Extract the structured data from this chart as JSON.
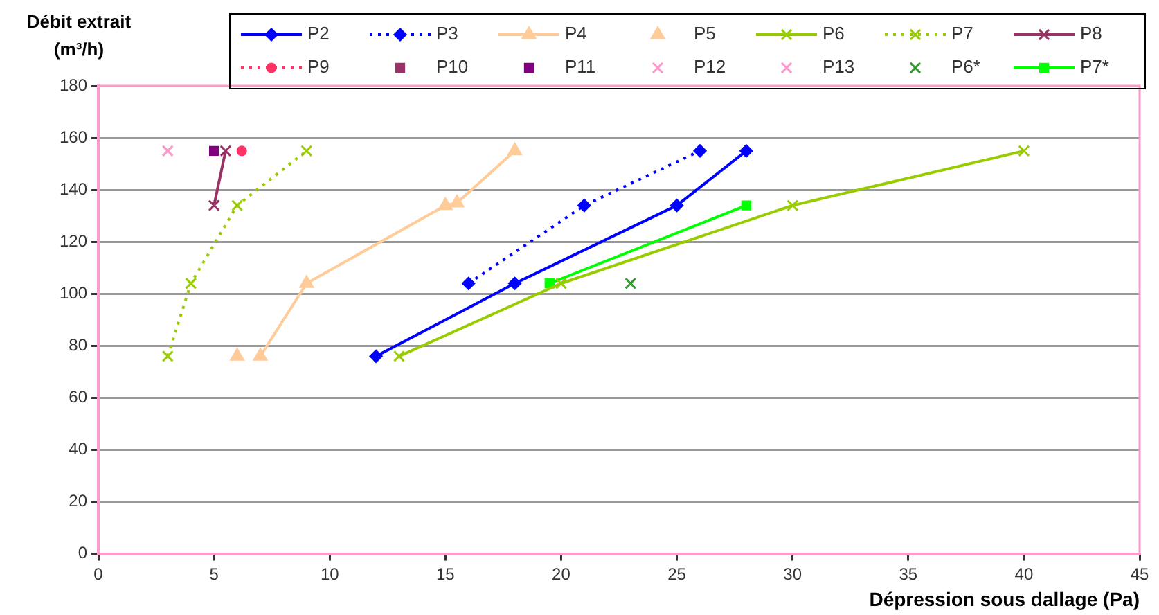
{
  "chart_data": {
    "type": "line",
    "xlabel": "Dépression sous dallage (Pa)",
    "ylabel": "Débit extrait (m³/h)",
    "xlim": [
      0,
      45
    ],
    "xticks": [
      0,
      5,
      10,
      15,
      20,
      25,
      30,
      35,
      40,
      45
    ],
    "ylim": [
      0,
      180
    ],
    "yticks": [
      0,
      20,
      40,
      60,
      80,
      100,
      120,
      140,
      160,
      180
    ],
    "grid": "y",
    "legend": "top",
    "series": [
      {
        "name": "P2",
        "type": "line",
        "color": "#0000ff",
        "marker": "diamond",
        "line_style": "solid",
        "x": [
          12,
          18,
          25,
          28
        ],
        "values": [
          76,
          104,
          134,
          155
        ]
      },
      {
        "name": "P3",
        "type": "line",
        "color": "#0000ff",
        "marker": "diamond",
        "line_style": "dotted",
        "x": [
          16,
          21,
          26
        ],
        "values": [
          104,
          134,
          155
        ]
      },
      {
        "name": "P4",
        "type": "line",
        "color": "#ffcc99",
        "marker": "triangle",
        "line_style": "solid",
        "x": [
          7,
          9,
          15,
          15.5,
          18
        ],
        "values": [
          76,
          104,
          134,
          135,
          155
        ]
      },
      {
        "name": "P5",
        "type": "scatter",
        "color": "#ffcc99",
        "marker": "triangle",
        "x": [
          6
        ],
        "values": [
          76
        ]
      },
      {
        "name": "P6",
        "type": "line",
        "color": "#99cc00",
        "marker": "cross",
        "line_style": "solid",
        "x": [
          13,
          20,
          30,
          40
        ],
        "values": [
          76,
          104,
          134,
          155
        ]
      },
      {
        "name": "P7",
        "type": "line",
        "color": "#99cc00",
        "marker": "cross",
        "line_style": "dotted",
        "x": [
          3,
          4,
          6,
          9
        ],
        "values": [
          76,
          104,
          134,
          155
        ]
      },
      {
        "name": "P8",
        "type": "line",
        "color": "#993366",
        "marker": "cross",
        "line_style": "solid",
        "x": [
          5,
          5.5
        ],
        "values": [
          134,
          155
        ]
      },
      {
        "name": "P9",
        "type": "line",
        "color": "#ff3366",
        "marker": "circle",
        "line_style": "dotted",
        "x": [
          6.2
        ],
        "values": [
          155
        ]
      },
      {
        "name": "P10",
        "type": "scatter",
        "color": "#993366",
        "marker": "square"
      },
      {
        "name": "P11",
        "type": "scatter",
        "color": "#800080",
        "marker": "square",
        "x": [
          5
        ],
        "values": [
          155
        ]
      },
      {
        "name": "P12",
        "type": "scatter",
        "color": "#ff99cc",
        "marker": "cross",
        "x": [
          3
        ],
        "values": [
          155
        ]
      },
      {
        "name": "P13",
        "type": "scatter",
        "color": "#ff99cc",
        "marker": "cross",
        "x": [
          3
        ],
        "values": [
          155
        ]
      },
      {
        "name": "P6*",
        "type": "scatter",
        "color": "#339933",
        "marker": "cross",
        "x": [
          23
        ],
        "values": [
          104
        ]
      },
      {
        "name": "P7*",
        "type": "line",
        "color": "#00ff00",
        "marker": "square",
        "line_style": "solid",
        "x": [
          19.5,
          28
        ],
        "values": [
          104,
          134
        ]
      }
    ]
  }
}
